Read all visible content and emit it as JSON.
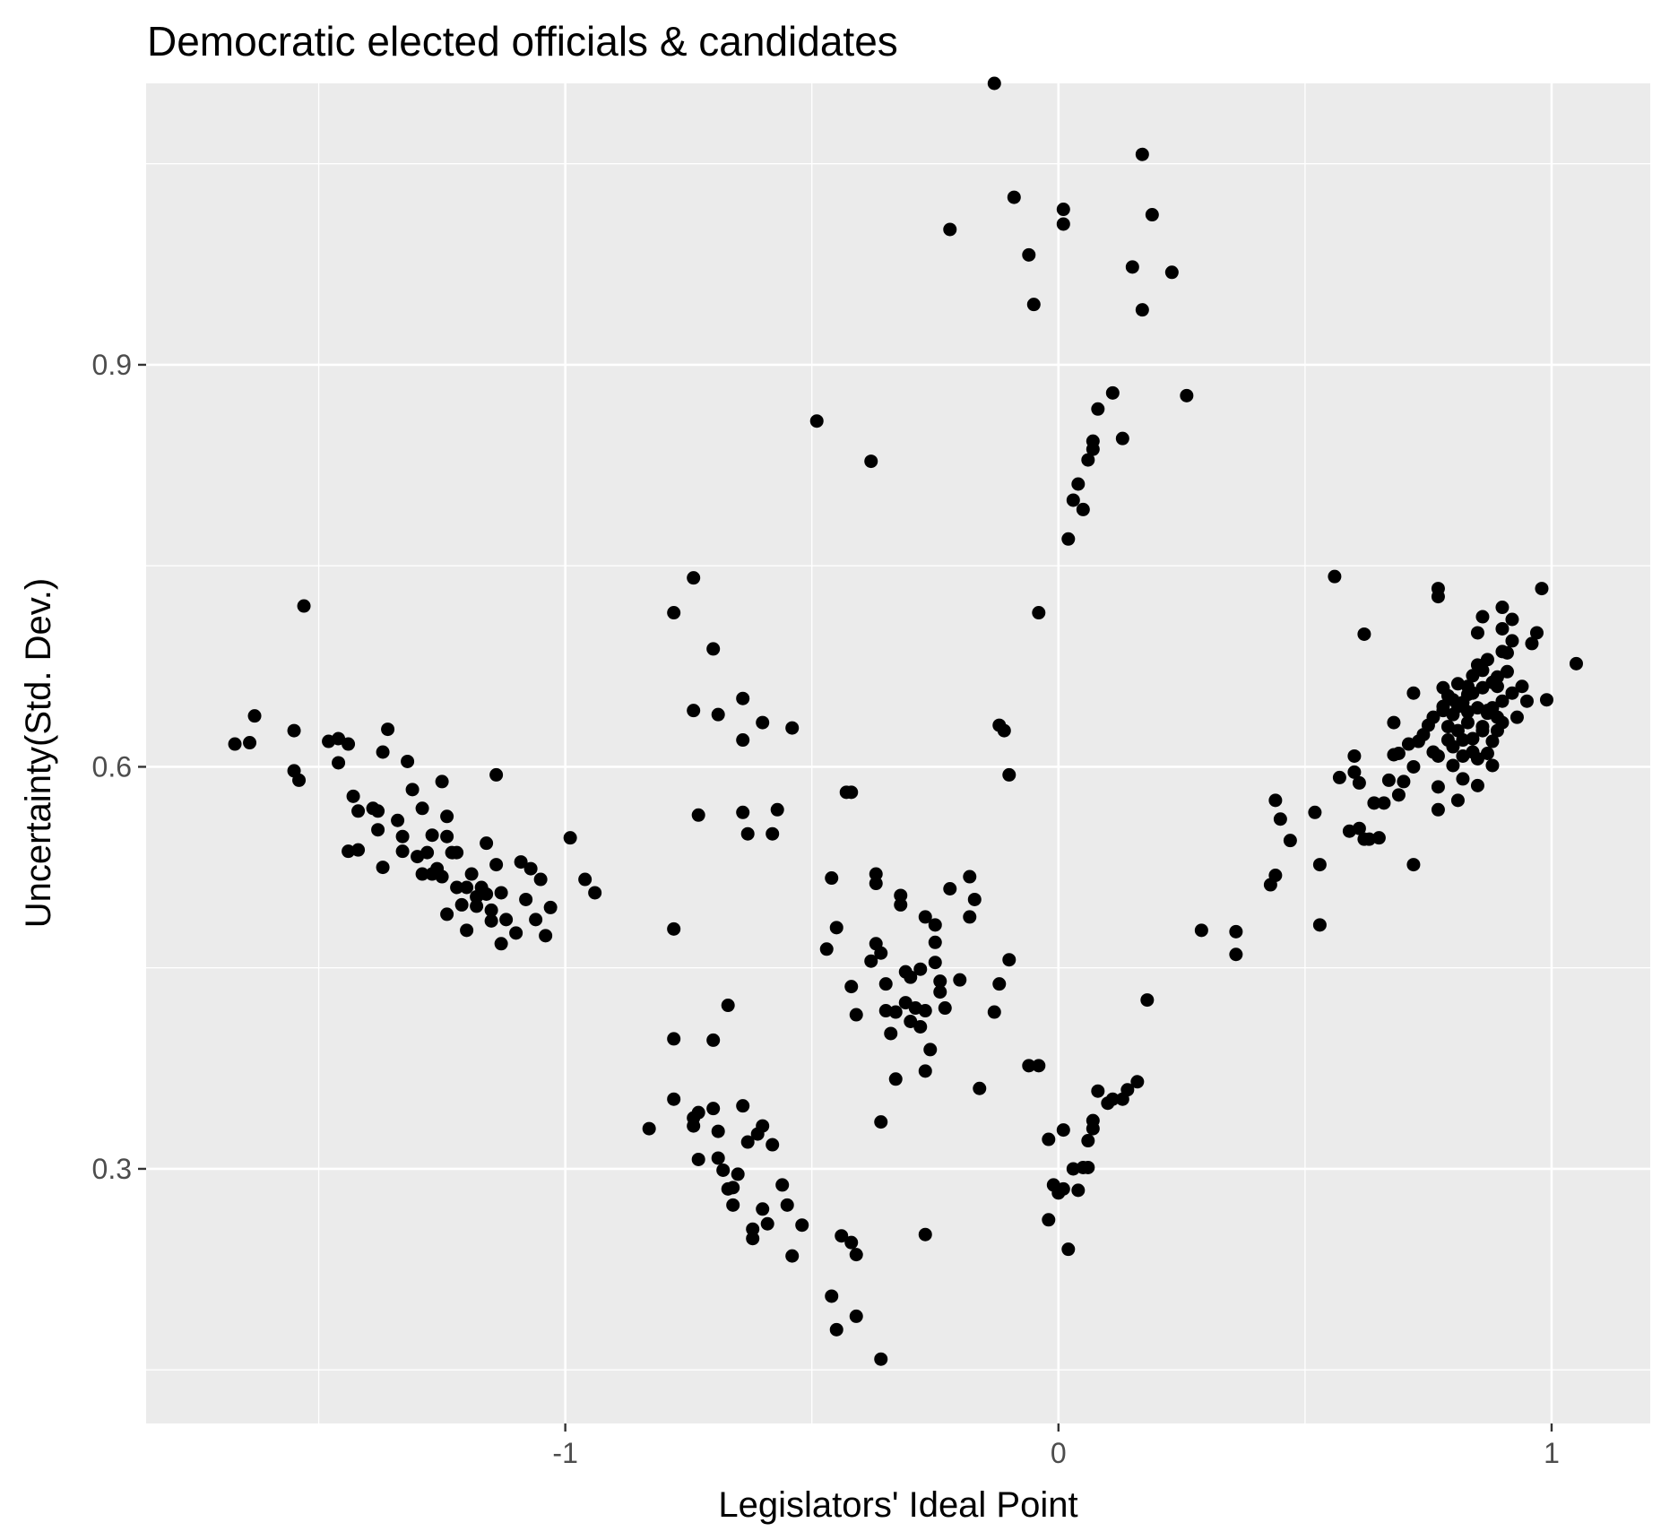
{
  "chart_data": {
    "type": "scatter",
    "title": "Democratic elected officials & candidates",
    "xlabel": "Legislators' Ideal Point",
    "ylabel": "Uncertainty(Std. Dev.)",
    "xlim": [
      -1.85,
      1.2
    ],
    "ylim": [
      0.11,
      1.11
    ],
    "x_ticks": [
      -1,
      0,
      1
    ],
    "x_tick_labels": [
      "-1",
      "0",
      "1"
    ],
    "y_ticks": [
      0.3,
      0.6,
      0.9
    ],
    "y_tick_labels": [
      "0.3",
      "0.6",
      "0.9"
    ],
    "x_minor_ticks": [
      -1.5,
      -0.5,
      0.5
    ],
    "y_minor_ticks": [
      0.15,
      0.45,
      0.75,
      1.05
    ],
    "grid": true,
    "legend": "none",
    "point_color": "#000000",
    "panel_color": "#ebebeb",
    "grid_color": "#ffffff",
    "points": [
      [
        -1.67,
        0.617
      ],
      [
        -1.64,
        0.618
      ],
      [
        -1.63,
        0.638
      ],
      [
        -1.55,
        0.627
      ],
      [
        -1.55,
        0.597
      ],
      [
        -1.54,
        0.59
      ],
      [
        -1.53,
        0.72
      ],
      [
        -1.48,
        0.619
      ],
      [
        -1.46,
        0.621
      ],
      [
        -1.46,
        0.603
      ],
      [
        -1.44,
        0.617
      ],
      [
        -1.44,
        0.537
      ],
      [
        -1.43,
        0.578
      ],
      [
        -1.42,
        0.567
      ],
      [
        -1.42,
        0.538
      ],
      [
        -1.39,
        0.569
      ],
      [
        -1.38,
        0.567
      ],
      [
        -1.38,
        0.553
      ],
      [
        -1.37,
        0.611
      ],
      [
        -1.36,
        0.628
      ],
      [
        -1.37,
        0.525
      ],
      [
        -1.34,
        0.56
      ],
      [
        -1.33,
        0.548
      ],
      [
        -1.33,
        0.537
      ],
      [
        -1.32,
        0.604
      ],
      [
        -1.31,
        0.583
      ],
      [
        -1.3,
        0.533
      ],
      [
        -1.29,
        0.52
      ],
      [
        -1.29,
        0.569
      ],
      [
        -1.28,
        0.536
      ],
      [
        -1.27,
        0.549
      ],
      [
        -1.26,
        0.524
      ],
      [
        -1.25,
        0.589
      ],
      [
        -1.25,
        0.518
      ],
      [
        -1.24,
        0.563
      ],
      [
        -1.24,
        0.548
      ],
      [
        -1.23,
        0.536
      ],
      [
        -1.22,
        0.51
      ],
      [
        -1.22,
        0.536
      ],
      [
        -1.21,
        0.497
      ],
      [
        -1.2,
        0.51
      ],
      [
        -1.19,
        0.52
      ],
      [
        -1.18,
        0.503
      ],
      [
        -1.17,
        0.51
      ],
      [
        -1.16,
        0.543
      ],
      [
        -1.16,
        0.505
      ],
      [
        -1.15,
        0.493
      ],
      [
        -1.15,
        0.485
      ],
      [
        -1.14,
        0.594
      ],
      [
        -1.14,
        0.527
      ],
      [
        -1.13,
        0.506
      ],
      [
        -1.13,
        0.468
      ],
      [
        -1.12,
        0.486
      ],
      [
        -1.1,
        0.476
      ],
      [
        -1.09,
        0.529
      ],
      [
        -1.08,
        0.501
      ],
      [
        -1.07,
        0.524
      ],
      [
        -1.06,
        0.486
      ],
      [
        -1.05,
        0.516
      ],
      [
        -1.04,
        0.474
      ],
      [
        -1.03,
        0.495
      ],
      [
        -1.24,
        0.49
      ],
      [
        -1.27,
        0.52
      ],
      [
        -1.2,
        0.478
      ],
      [
        -1.18,
        0.496
      ],
      [
        -0.99,
        0.547
      ],
      [
        -0.96,
        0.516
      ],
      [
        -0.94,
        0.506
      ],
      [
        -0.78,
        0.715
      ],
      [
        -0.74,
        0.741
      ],
      [
        -0.74,
        0.642
      ],
      [
        -0.73,
        0.564
      ],
      [
        -0.7,
        0.688
      ],
      [
        -0.69,
        0.639
      ],
      [
        -0.64,
        0.651
      ],
      [
        -0.64,
        0.62
      ],
      [
        -0.64,
        0.566
      ],
      [
        -0.63,
        0.55
      ],
      [
        -0.6,
        0.633
      ],
      [
        -0.58,
        0.55
      ],
      [
        -0.57,
        0.568
      ],
      [
        -0.54,
        0.629
      ],
      [
        -0.78,
        0.479
      ],
      [
        -0.78,
        0.397
      ],
      [
        -0.78,
        0.352
      ],
      [
        -0.73,
        0.342
      ],
      [
        -0.74,
        0.332
      ],
      [
        -0.74,
        0.338
      ],
      [
        -0.73,
        0.307
      ],
      [
        -0.7,
        0.345
      ],
      [
        -0.7,
        0.396
      ],
      [
        -0.69,
        0.328
      ],
      [
        -0.69,
        0.308
      ],
      [
        -0.68,
        0.299
      ],
      [
        -0.67,
        0.422
      ],
      [
        -0.67,
        0.285
      ],
      [
        -0.66,
        0.273
      ],
      [
        -0.66,
        0.286
      ],
      [
        -0.65,
        0.296
      ],
      [
        -0.64,
        0.347
      ],
      [
        -0.63,
        0.32
      ],
      [
        -0.62,
        0.255
      ],
      [
        -0.62,
        0.248
      ],
      [
        -0.61,
        0.326
      ],
      [
        -0.6,
        0.332
      ],
      [
        -0.6,
        0.27
      ],
      [
        -0.59,
        0.259
      ],
      [
        -0.58,
        0.318
      ],
      [
        -0.56,
        0.288
      ],
      [
        -0.55,
        0.273
      ],
      [
        -0.54,
        0.235
      ],
      [
        -0.52,
        0.258
      ],
      [
        -0.83,
        0.33
      ],
      [
        -0.49,
        0.858
      ],
      [
        -0.38,
        0.828
      ],
      [
        -0.46,
        0.517
      ],
      [
        -0.47,
        0.464
      ],
      [
        -0.45,
        0.48
      ],
      [
        -0.43,
        0.581
      ],
      [
        -0.42,
        0.581
      ],
      [
        -0.42,
        0.436
      ],
      [
        -0.41,
        0.415
      ],
      [
        -0.38,
        0.455
      ],
      [
        -0.37,
        0.52
      ],
      [
        -0.37,
        0.513
      ],
      [
        -0.37,
        0.468
      ],
      [
        -0.36,
        0.461
      ],
      [
        -0.35,
        0.438
      ],
      [
        -0.35,
        0.418
      ],
      [
        -0.34,
        0.401
      ],
      [
        -0.33,
        0.417
      ],
      [
        -0.33,
        0.367
      ],
      [
        -0.32,
        0.504
      ],
      [
        -0.32,
        0.497
      ],
      [
        -0.31,
        0.424
      ],
      [
        -0.31,
        0.447
      ],
      [
        -0.3,
        0.443
      ],
      [
        -0.3,
        0.41
      ],
      [
        -0.29,
        0.42
      ],
      [
        -0.28,
        0.449
      ],
      [
        -0.28,
        0.406
      ],
      [
        -0.27,
        0.488
      ],
      [
        -0.27,
        0.418
      ],
      [
        -0.26,
        0.389
      ],
      [
        -0.25,
        0.482
      ],
      [
        -0.25,
        0.469
      ],
      [
        -0.25,
        0.454
      ],
      [
        -0.24,
        0.44
      ],
      [
        -0.24,
        0.432
      ],
      [
        -0.23,
        0.42
      ],
      [
        -0.22,
        0.509
      ],
      [
        -0.2,
        0.441
      ],
      [
        -0.18,
        0.518
      ],
      [
        -0.18,
        0.488
      ],
      [
        -0.17,
        0.501
      ],
      [
        -0.16,
        0.36
      ],
      [
        -0.13,
        0.417
      ],
      [
        -0.12,
        0.438
      ],
      [
        -0.1,
        0.456
      ],
      [
        -0.27,
        0.373
      ],
      [
        -0.36,
        0.335
      ],
      [
        -0.27,
        0.251
      ],
      [
        -0.46,
        0.205
      ],
      [
        -0.45,
        0.18
      ],
      [
        -0.44,
        0.25
      ],
      [
        -0.42,
        0.245
      ],
      [
        -0.41,
        0.236
      ],
      [
        -0.41,
        0.19
      ],
      [
        -0.36,
        0.158
      ],
      [
        -0.13,
        1.11
      ],
      [
        -0.22,
        1.001
      ],
      [
        -0.09,
        1.025
      ],
      [
        -0.06,
        0.982
      ],
      [
        -0.05,
        0.945
      ],
      [
        0.01,
        1.005
      ],
      [
        0.01,
        1.016
      ],
      [
        0.15,
        0.973
      ],
      [
        0.17,
        1.057
      ],
      [
        0.17,
        0.941
      ],
      [
        0.19,
        1.012
      ],
      [
        0.23,
        0.969
      ],
      [
        0.26,
        0.877
      ],
      [
        -0.12,
        0.631
      ],
      [
        -0.11,
        0.627
      ],
      [
        -0.1,
        0.594
      ],
      [
        -0.04,
        0.715
      ],
      [
        0.02,
        0.77
      ],
      [
        0.03,
        0.799
      ],
      [
        0.04,
        0.811
      ],
      [
        0.05,
        0.792
      ],
      [
        0.06,
        0.829
      ],
      [
        0.07,
        0.837
      ],
      [
        0.07,
        0.843
      ],
      [
        0.08,
        0.867
      ],
      [
        0.11,
        0.879
      ],
      [
        0.13,
        0.845
      ],
      [
        0.18,
        0.426
      ],
      [
        -0.06,
        0.377
      ],
      [
        -0.04,
        0.377
      ],
      [
        -0.02,
        0.322
      ],
      [
        -0.02,
        0.262
      ],
      [
        -0.01,
        0.288
      ],
      [
        0.0,
        0.282
      ],
      [
        0.01,
        0.329
      ],
      [
        0.01,
        0.285
      ],
      [
        0.02,
        0.24
      ],
      [
        0.03,
        0.3
      ],
      [
        0.04,
        0.284
      ],
      [
        0.05,
        0.301
      ],
      [
        0.06,
        0.301
      ],
      [
        0.06,
        0.321
      ],
      [
        0.07,
        0.336
      ],
      [
        0.07,
        0.33
      ],
      [
        0.08,
        0.358
      ],
      [
        0.1,
        0.349
      ],
      [
        0.11,
        0.352
      ],
      [
        0.13,
        0.352
      ],
      [
        0.14,
        0.359
      ],
      [
        0.16,
        0.365
      ],
      [
        0.29,
        0.478
      ],
      [
        0.36,
        0.477
      ],
      [
        0.36,
        0.46
      ],
      [
        0.43,
        0.512
      ],
      [
        0.44,
        0.519
      ],
      [
        0.44,
        0.575
      ],
      [
        0.45,
        0.561
      ],
      [
        0.47,
        0.545
      ],
      [
        0.52,
        0.566
      ],
      [
        0.53,
        0.527
      ],
      [
        0.53,
        0.482
      ],
      [
        0.56,
        0.742
      ],
      [
        0.57,
        0.592
      ],
      [
        0.59,
        0.552
      ],
      [
        0.6,
        0.608
      ],
      [
        0.6,
        0.596
      ],
      [
        0.61,
        0.588
      ],
      [
        0.61,
        0.554
      ],
      [
        0.62,
        0.546
      ],
      [
        0.62,
        0.699
      ],
      [
        0.63,
        0.546
      ],
      [
        0.64,
        0.573
      ],
      [
        0.65,
        0.547
      ],
      [
        0.66,
        0.573
      ],
      [
        0.67,
        0.59
      ],
      [
        0.68,
        0.609
      ],
      [
        0.68,
        0.633
      ],
      [
        0.69,
        0.61
      ],
      [
        0.69,
        0.579
      ],
      [
        0.7,
        0.589
      ],
      [
        0.71,
        0.617
      ],
      [
        0.72,
        0.6
      ],
      [
        0.72,
        0.527
      ],
      [
        0.72,
        0.655
      ],
      [
        0.73,
        0.619
      ],
      [
        0.74,
        0.624
      ],
      [
        0.75,
        0.631
      ],
      [
        0.76,
        0.637
      ],
      [
        0.76,
        0.611
      ],
      [
        0.77,
        0.608
      ],
      [
        0.77,
        0.585
      ],
      [
        0.77,
        0.568
      ],
      [
        0.77,
        0.733
      ],
      [
        0.77,
        0.727
      ],
      [
        0.78,
        0.659
      ],
      [
        0.78,
        0.642
      ],
      [
        0.79,
        0.63
      ],
      [
        0.79,
        0.62
      ],
      [
        0.79,
        0.653
      ],
      [
        0.8,
        0.639
      ],
      [
        0.8,
        0.615
      ],
      [
        0.8,
        0.601
      ],
      [
        0.81,
        0.575
      ],
      [
        0.81,
        0.627
      ],
      [
        0.81,
        0.662
      ],
      [
        0.82,
        0.648
      ],
      [
        0.82,
        0.608
      ],
      [
        0.82,
        0.591
      ],
      [
        0.83,
        0.641
      ],
      [
        0.83,
        0.654
      ],
      [
        0.83,
        0.633
      ],
      [
        0.84,
        0.621
      ],
      [
        0.84,
        0.611
      ],
      [
        0.84,
        0.668
      ],
      [
        0.84,
        0.611
      ],
      [
        0.85,
        0.644
      ],
      [
        0.85,
        0.676
      ],
      [
        0.85,
        0.606
      ],
      [
        0.85,
        0.586
      ],
      [
        0.86,
        0.712
      ],
      [
        0.86,
        0.659
      ],
      [
        0.86,
        0.627
      ],
      [
        0.87,
        0.642
      ],
      [
        0.87,
        0.68
      ],
      [
        0.87,
        0.61
      ],
      [
        0.88,
        0.663
      ],
      [
        0.88,
        0.644
      ],
      [
        0.88,
        0.619
      ],
      [
        0.88,
        0.601
      ],
      [
        0.89,
        0.637
      ],
      [
        0.89,
        0.66
      ],
      [
        0.89,
        0.667
      ],
      [
        0.89,
        0.627
      ],
      [
        0.9,
        0.719
      ],
      [
        0.9,
        0.703
      ],
      [
        0.9,
        0.686
      ],
      [
        0.9,
        0.649
      ],
      [
        0.9,
        0.633
      ],
      [
        0.91,
        0.671
      ],
      [
        0.91,
        0.685
      ],
      [
        0.92,
        0.694
      ],
      [
        0.92,
        0.71
      ],
      [
        0.92,
        0.655
      ],
      [
        0.93,
        0.637
      ],
      [
        0.94,
        0.66
      ],
      [
        0.95,
        0.649
      ],
      [
        0.96,
        0.692
      ],
      [
        0.97,
        0.7
      ],
      [
        0.98,
        0.733
      ],
      [
        0.99,
        0.65
      ],
      [
        1.05,
        0.677
      ],
      [
        0.85,
        0.7
      ],
      [
        0.86,
        0.63
      ],
      [
        0.87,
        0.64
      ],
      [
        0.83,
        0.66
      ],
      [
        0.8,
        0.65
      ],
      [
        0.78,
        0.645
      ],
      [
        0.82,
        0.62
      ],
      [
        0.84,
        0.655
      ],
      [
        0.81,
        0.645
      ],
      [
        0.86,
        0.672
      ]
    ]
  }
}
